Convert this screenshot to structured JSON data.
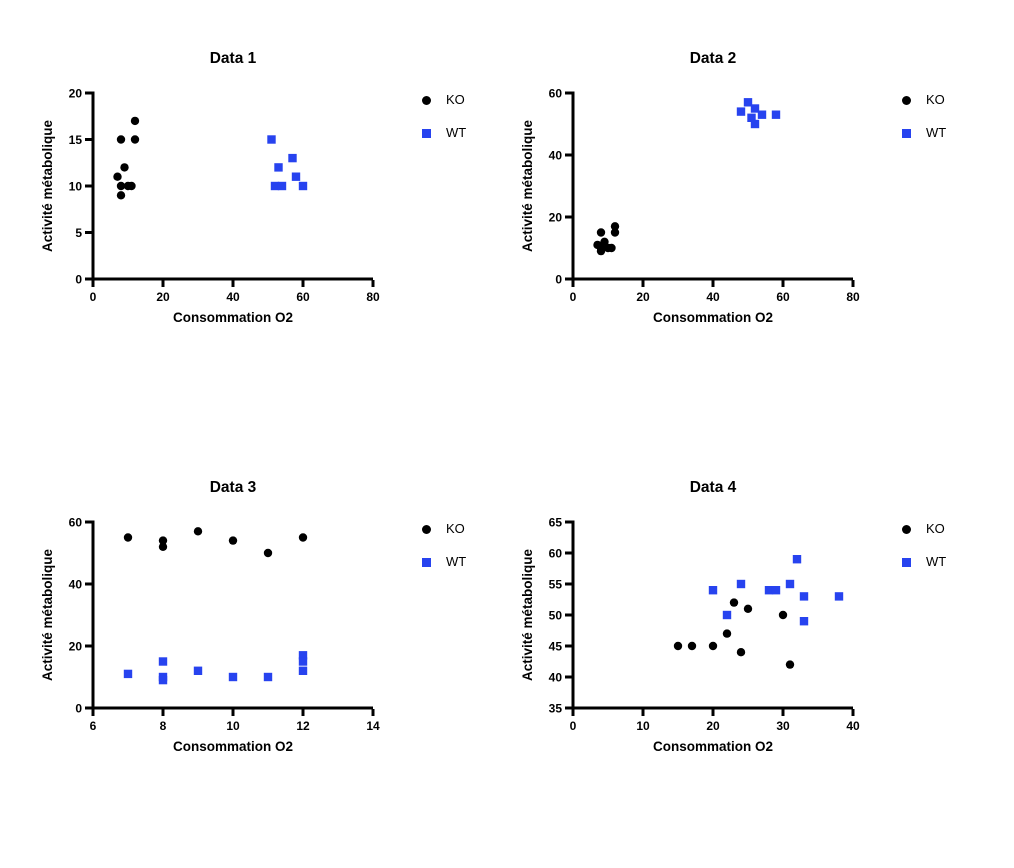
{
  "page": {
    "background": "#ffffff"
  },
  "colors": {
    "ko": "#000000",
    "wt": "#2743ef",
    "axis": "#000000"
  },
  "chart_data": [
    {
      "type": "scatter",
      "title": "Data 1",
      "xlabel": "Consommation O2",
      "ylabel": "Activité métabolique",
      "xlim": [
        0,
        80
      ],
      "xticks": [
        0,
        20,
        40,
        60,
        80
      ],
      "ylim": [
        0,
        20
      ],
      "yticks": [
        0,
        5,
        10,
        15,
        20
      ],
      "grid": false,
      "legend_position": "right-top",
      "series": [
        {
          "name": "KO",
          "marker": "circle",
          "color": "#000000",
          "points": [
            [
              12,
              17
            ],
            [
              8,
              15
            ],
            [
              12,
              15
            ],
            [
              9,
              12
            ],
            [
              7,
              11
            ],
            [
              8,
              10
            ],
            [
              10,
              10
            ],
            [
              11,
              10
            ],
            [
              8,
              9
            ]
          ]
        },
        {
          "name": "WT",
          "marker": "square",
          "color": "#2743ef",
          "points": [
            [
              51,
              15
            ],
            [
              57,
              13
            ],
            [
              53,
              12
            ],
            [
              58,
              11
            ],
            [
              52,
              10
            ],
            [
              54,
              10
            ],
            [
              60,
              10
            ]
          ]
        }
      ]
    },
    {
      "type": "scatter",
      "title": "Data 2",
      "xlabel": "Consommation O2",
      "ylabel": "Activité métabolique",
      "xlim": [
        0,
        80
      ],
      "xticks": [
        0,
        20,
        40,
        60,
        80
      ],
      "ylim": [
        0,
        60
      ],
      "yticks": [
        0,
        20,
        40,
        60
      ],
      "grid": false,
      "legend_position": "right-top",
      "series": [
        {
          "name": "KO",
          "marker": "circle",
          "color": "#000000",
          "points": [
            [
              12,
              17
            ],
            [
              8,
              15
            ],
            [
              12,
              15
            ],
            [
              9,
              12
            ],
            [
              7,
              11
            ],
            [
              8,
              10
            ],
            [
              10,
              10
            ],
            [
              11,
              10
            ],
            [
              8,
              9
            ]
          ]
        },
        {
          "name": "WT",
          "marker": "square",
          "color": "#2743ef",
          "points": [
            [
              50,
              57
            ],
            [
              48,
              54
            ],
            [
              52,
              55
            ],
            [
              51,
              52
            ],
            [
              54,
              53
            ],
            [
              52,
              50
            ],
            [
              58,
              53
            ]
          ]
        }
      ]
    },
    {
      "type": "scatter",
      "title": "Data 3",
      "xlabel": "Consommation O2",
      "ylabel": "Activité métabolique",
      "xlim": [
        6,
        14
      ],
      "xticks": [
        6,
        8,
        10,
        12,
        14
      ],
      "ylim": [
        0,
        60
      ],
      "yticks": [
        0,
        20,
        40,
        60
      ],
      "grid": false,
      "legend_position": "right-top",
      "series": [
        {
          "name": "KO",
          "marker": "circle",
          "color": "#000000",
          "points": [
            [
              7,
              55
            ],
            [
              8,
              54
            ],
            [
              8,
              52
            ],
            [
              9,
              57
            ],
            [
              10,
              54
            ],
            [
              11,
              50
            ],
            [
              12,
              55
            ]
          ]
        },
        {
          "name": "WT",
          "marker": "square",
          "color": "#2743ef",
          "points": [
            [
              7,
              11
            ],
            [
              8,
              15
            ],
            [
              8,
              10
            ],
            [
              8,
              9
            ],
            [
              9,
              12
            ],
            [
              10,
              10
            ],
            [
              11,
              10
            ],
            [
              12,
              17
            ],
            [
              12,
              15
            ],
            [
              12,
              12
            ]
          ]
        }
      ]
    },
    {
      "type": "scatter",
      "title": "Data 4",
      "xlabel": "Consommation O2",
      "ylabel": "Activité métabolique",
      "xlim": [
        0,
        40
      ],
      "xticks": [
        0,
        10,
        20,
        30,
        40
      ],
      "ylim": [
        35,
        65
      ],
      "yticks": [
        35,
        40,
        45,
        50,
        55,
        60,
        65
      ],
      "grid": false,
      "legend_position": "right-top",
      "series": [
        {
          "name": "KO",
          "marker": "circle",
          "color": "#000000",
          "points": [
            [
              15,
              45
            ],
            [
              17,
              45
            ],
            [
              20,
              45
            ],
            [
              22,
              47
            ],
            [
              23,
              52
            ],
            [
              24,
              44
            ],
            [
              25,
              51
            ],
            [
              30,
              50
            ],
            [
              31,
              42
            ]
          ]
        },
        {
          "name": "WT",
          "marker": "square",
          "color": "#2743ef",
          "points": [
            [
              20,
              54
            ],
            [
              22,
              50
            ],
            [
              24,
              55
            ],
            [
              28,
              54
            ],
            [
              29,
              54
            ],
            [
              31,
              55
            ],
            [
              32,
              59
            ],
            [
              33,
              53
            ],
            [
              33,
              49
            ],
            [
              38,
              53
            ]
          ]
        }
      ]
    }
  ]
}
